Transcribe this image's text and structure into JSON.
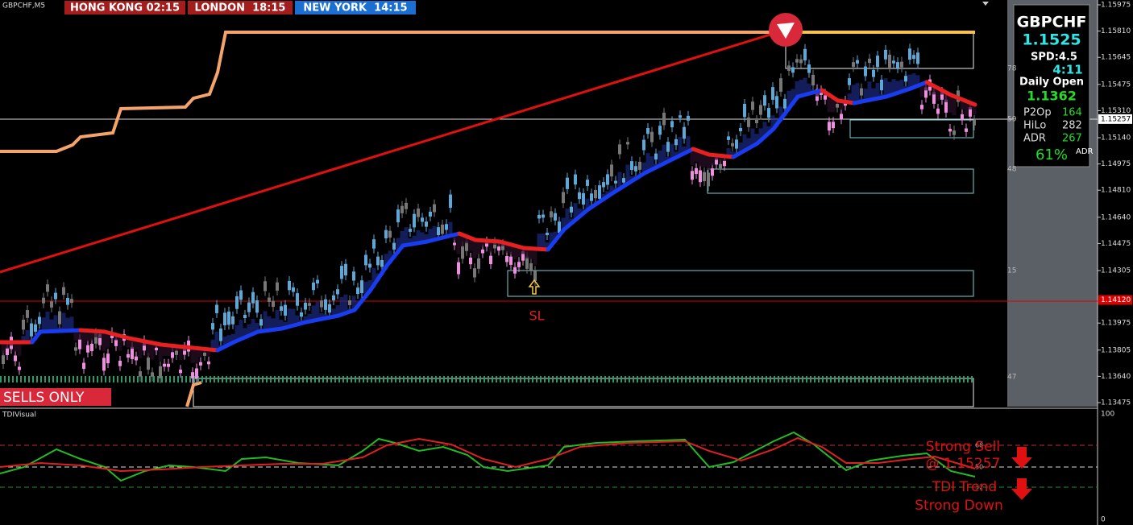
{
  "header": {
    "symbol": "GBPCHF,M5",
    "clocks": [
      "HONG KONG 02:15",
      "LONDON  18:15",
      "NEW YORK  14:15"
    ]
  },
  "price_axis": {
    "ticks": [
      "1.15975",
      "1.15810",
      "1.15645",
      "1.15475",
      "1.15310",
      "1.15140",
      "1.14975",
      "1.14810",
      "1.14640",
      "1.14475",
      "1.14305",
      "1.13975",
      "1.13805",
      "1.13640",
      "1.13475"
    ],
    "current_price": "1.15257",
    "line_price": "1.14120"
  },
  "zone_labels": [
    "78",
    "59",
    "48",
    "15",
    "47"
  ],
  "chart_labels": {
    "stop_loss": "SL",
    "sells_only": "SELLS ONLY"
  },
  "info_panel": {
    "symbol": "GBPCHF",
    "price": "1.1525",
    "spread": "SPD:4.5",
    "timer": "4:11",
    "daily_open_label": "Daily Open",
    "daily_open": "1.1362",
    "rows": [
      [
        "P2Op",
        "164"
      ],
      [
        "HiLo",
        "282"
      ],
      [
        "ADR",
        "267"
      ]
    ],
    "adr_percent": "61%",
    "adr_suffix": "ADR"
  },
  "indicator": {
    "name": "TDIVisual",
    "axis_top": "100",
    "axis_bottom": "0",
    "levels": [
      "68",
      "50",
      "32"
    ],
    "signal_line1": "Strong Sell",
    "signal_line2": "@ 1.15257",
    "trend_line1": "TDI Trend",
    "trend_line2": "Strong Down"
  }
}
